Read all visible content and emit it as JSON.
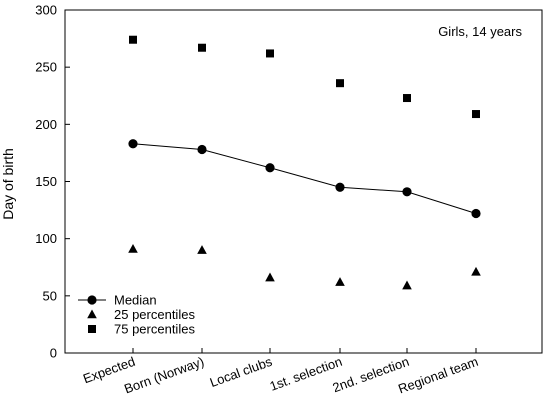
{
  "chart_data": {
    "type": "line",
    "annotation": "Girls, 14 years",
    "xlabel": "",
    "ylabel": "Day of birth",
    "ylim": [
      0,
      300
    ],
    "yticks": [
      0,
      50,
      100,
      150,
      200,
      250,
      300
    ],
    "categories": [
      "Expected",
      "Born (Norway)",
      "Local clubs",
      "1st. selection",
      "2nd. selection",
      "Regional team"
    ],
    "grid": false,
    "legend_position": "bottom-left",
    "series": [
      {
        "name": "Median",
        "marker": "circle",
        "connected": true,
        "values": [
          183,
          178,
          162,
          145,
          141,
          122
        ]
      },
      {
        "name": "25 percentiles",
        "marker": "triangle",
        "connected": false,
        "values": [
          91,
          90,
          66,
          62,
          59,
          71
        ]
      },
      {
        "name": "75 percentiles",
        "marker": "square",
        "connected": false,
        "values": [
          274,
          267,
          262,
          236,
          223,
          209
        ]
      }
    ]
  }
}
